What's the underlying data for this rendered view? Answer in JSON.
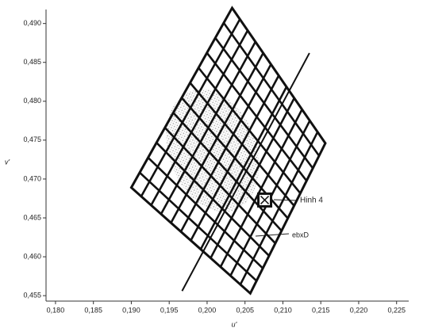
{
  "chart_data": {
    "type": "mesh",
    "x_label": "u'",
    "y_label": "v'",
    "xlim": [
      0.17875,
      0.2266
    ],
    "ylim": [
      0.4543,
      0.4918
    ],
    "xticks": [
      {
        "value": 0.18,
        "label": "0,180"
      },
      {
        "value": 0.185,
        "label": "0,185"
      },
      {
        "value": 0.19,
        "label": "0,190"
      },
      {
        "value": 0.195,
        "label": "0,195"
      },
      {
        "value": 0.2,
        "label": "0,200"
      },
      {
        "value": 0.205,
        "label": "0,205"
      },
      {
        "value": 0.21,
        "label": "0,210"
      },
      {
        "value": 0.215,
        "label": "0,215"
      },
      {
        "value": 0.22,
        "label": "0,220"
      },
      {
        "value": 0.225,
        "label": "0,225"
      }
    ],
    "yticks": [
      {
        "value": 0.455,
        "label": "0,455"
      },
      {
        "value": 0.46,
        "label": "0,460"
      },
      {
        "value": 0.465,
        "label": "0,465"
      },
      {
        "value": 0.47,
        "label": "0,470"
      },
      {
        "value": 0.475,
        "label": "0,475"
      },
      {
        "value": 0.48,
        "label": "0,480"
      },
      {
        "value": 0.485,
        "label": "0,485"
      },
      {
        "value": 0.49,
        "label": "0,490"
      }
    ],
    "mesh": {
      "u": [
        0.2033,
        0.2156,
        0.2057,
        0.19
      ],
      "v": [
        0.492,
        0.4746,
        0.4553,
        0.4689
      ]
    },
    "line": {
      "x": [
        0.1967,
        0.2135
      ],
      "y": [
        0.4556,
        0.4862
      ]
    },
    "marker": {
      "x": 0.2076,
      "y": 0.4673
    },
    "annotations": [
      "Hinh 4",
      "ebxD"
    ],
    "color": "#111111"
  }
}
